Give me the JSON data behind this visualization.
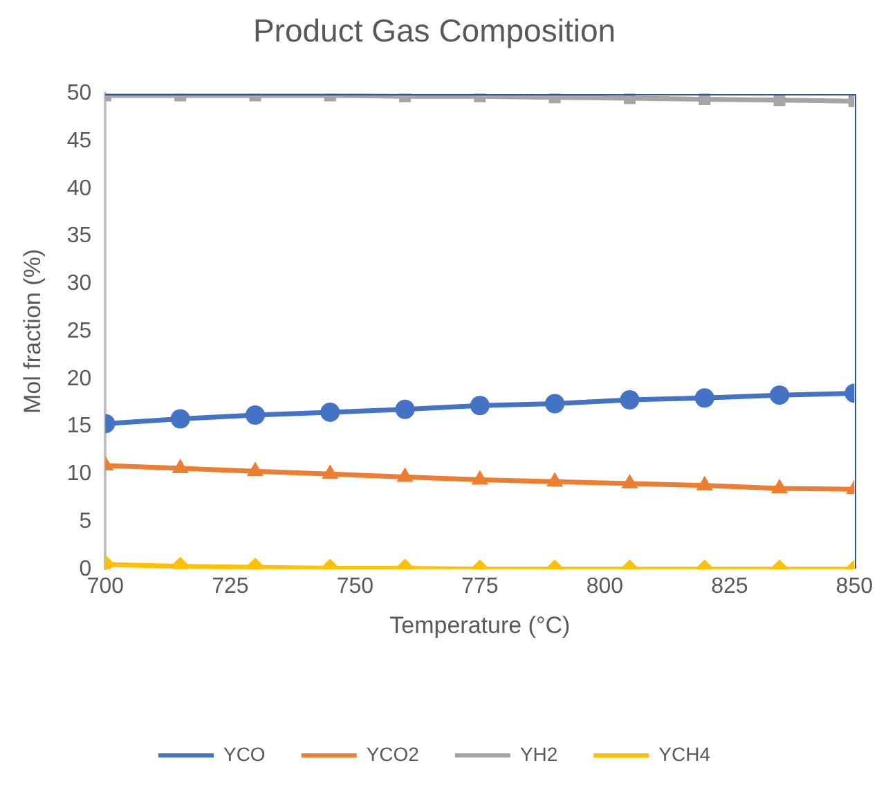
{
  "chart_data": {
    "type": "line",
    "title": "Product Gas Composition",
    "xlabel": "Temperature (°C)",
    "ylabel": "Mol fraction (%)",
    "x": [
      700,
      715,
      730,
      745,
      760,
      775,
      790,
      805,
      820,
      835,
      850
    ],
    "xlim": [
      700,
      850
    ],
    "xticks": [
      700,
      725,
      750,
      775,
      800,
      825,
      850
    ],
    "ylim": [
      0,
      50
    ],
    "yticks": [
      0,
      5,
      10,
      15,
      20,
      25,
      30,
      35,
      40,
      45,
      50
    ],
    "grid": false,
    "legend": "bottom",
    "line_style": "solid",
    "series": [
      {
        "name": "YCO",
        "color": "#4472c4",
        "marker": "circle",
        "values": [
          15.3,
          15.8,
          16.2,
          16.5,
          16.8,
          17.2,
          17.4,
          17.8,
          18.0,
          18.3,
          18.5
        ]
      },
      {
        "name": "YCO2",
        "color": "#ed7d31",
        "marker": "triangle",
        "values": [
          10.9,
          10.6,
          10.3,
          10.0,
          9.7,
          9.4,
          9.2,
          9.0,
          8.8,
          8.5,
          8.4
        ]
      },
      {
        "name": "YH2",
        "color": "#a5a5a5",
        "marker": "square",
        "values": [
          49.8,
          49.8,
          49.8,
          49.8,
          49.7,
          49.7,
          49.6,
          49.5,
          49.4,
          49.3,
          49.2
        ]
      },
      {
        "name": "YCH4",
        "color": "#ffc000",
        "marker": "diamond",
        "values": [
          0.5,
          0.3,
          0.2,
          0.1,
          0.1,
          0,
          0,
          0,
          0,
          0,
          0
        ]
      }
    ]
  }
}
